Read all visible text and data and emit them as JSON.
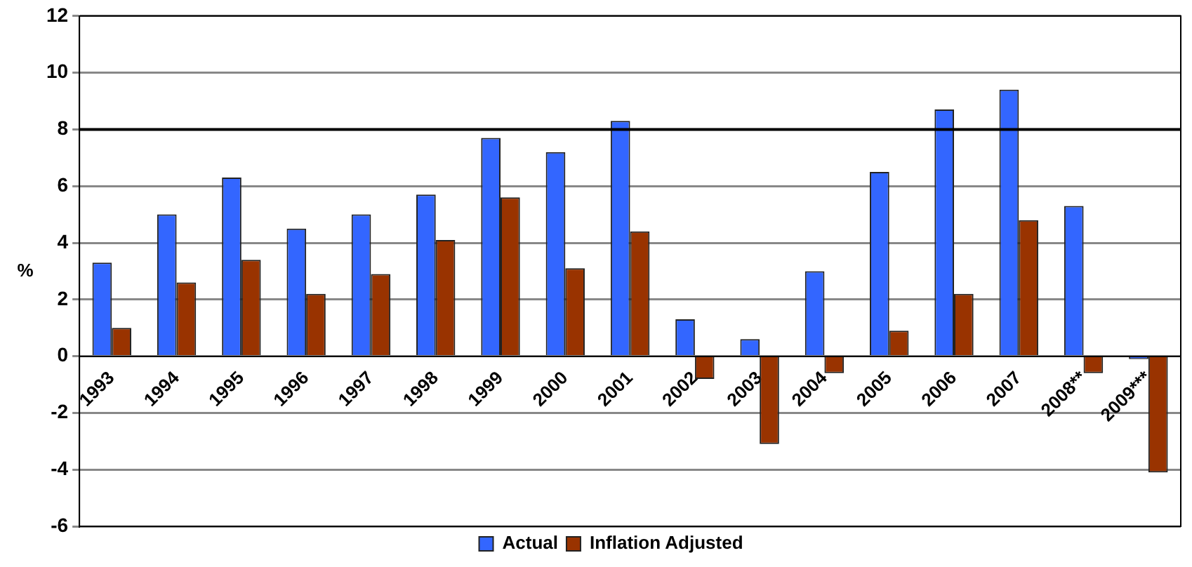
{
  "chart_data": {
    "type": "bar",
    "ylabel": "%",
    "categories": [
      "1993",
      "1994",
      "1995",
      "1996",
      "1997",
      "1998",
      "1999",
      "2000",
      "2001",
      "2002",
      "2003",
      "2004",
      "2005",
      "2006",
      "2007",
      "2008**",
      "2009***"
    ],
    "series": [
      {
        "name": "Actual",
        "color": "#3366ff",
        "values": [
          3.3,
          5.0,
          6.3,
          4.5,
          5.0,
          5.7,
          7.7,
          7.2,
          8.3,
          1.3,
          0.6,
          3.0,
          6.5,
          8.7,
          9.4,
          5.3,
          -0.1
        ]
      },
      {
        "name": "Inflation Adjusted",
        "color": "#993300",
        "values": [
          1.0,
          2.6,
          3.4,
          2.2,
          2.9,
          4.1,
          5.6,
          3.1,
          4.4,
          -0.8,
          -3.1,
          -0.6,
          0.9,
          2.2,
          4.8,
          -0.6,
          -4.1
        ]
      }
    ],
    "ylim": [
      -6,
      12
    ],
    "yticks": [
      -6,
      -4,
      -2,
      0,
      2,
      4,
      6,
      8,
      10,
      12
    ],
    "ref_lines": [
      {
        "axis": "y",
        "value": 8,
        "color": "#000000"
      }
    ],
    "grid": "y",
    "legend": "bottom"
  }
}
